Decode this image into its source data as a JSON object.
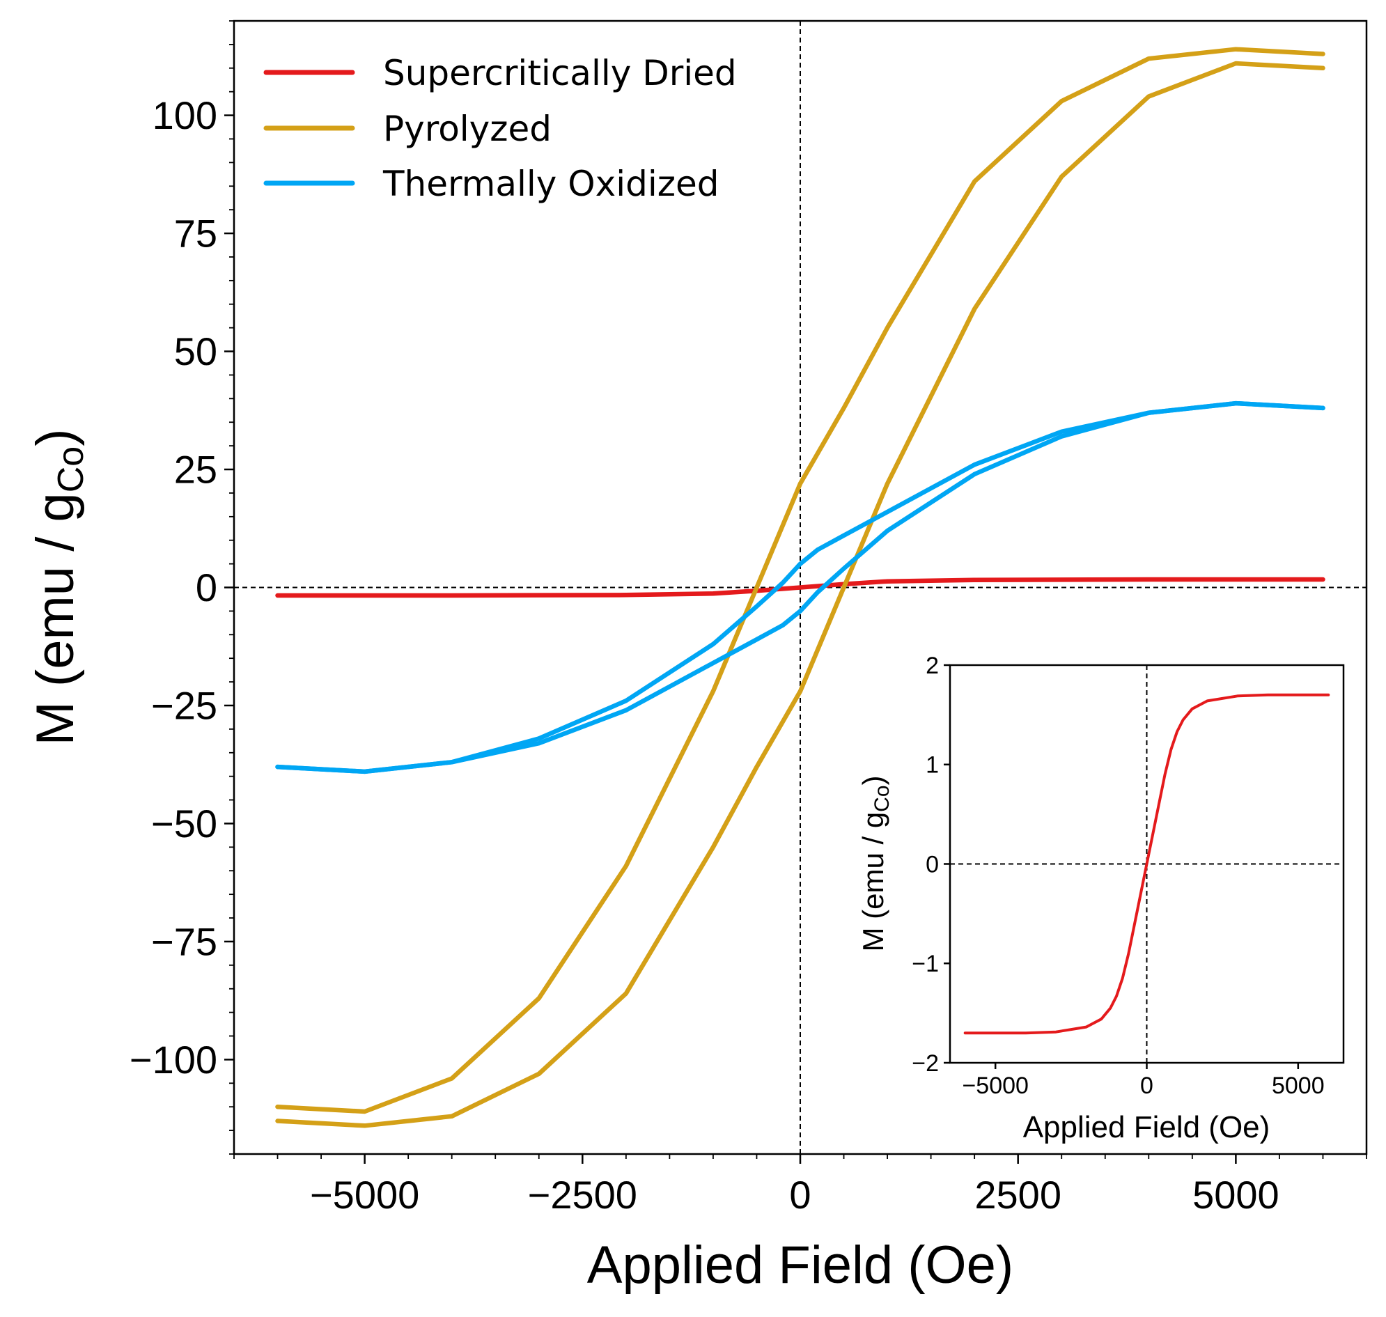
{
  "chart_data": [
    {
      "type": "line",
      "xlabel": "Applied Field (Oe)",
      "ylabel_main": "M (emu / g",
      "ylabel_sub": "Co",
      "ylabel_end": ")",
      "xlim": [
        -6500,
        6500
      ],
      "ylim": [
        -120,
        120
      ],
      "x_ticks": [
        -5000,
        -2500,
        0,
        2500,
        5000
      ],
      "x_tick_labels": [
        "−5000",
        "−2500",
        "0",
        "2500",
        "5000"
      ],
      "y_ticks": [
        100,
        75,
        50,
        25,
        0,
        -25,
        -50,
        -75,
        -100
      ],
      "y_tick_labels": [
        "100",
        "75",
        "50",
        "25",
        "0",
        "−25",
        "−50",
        "−75",
        "−100"
      ],
      "x_minor_step": 500,
      "y_minor_step": 5,
      "zero_lines": true,
      "legend_position": "upper-left",
      "series": [
        {
          "name": "Supercritically Dried",
          "color": "#e41a1c",
          "branches": [
            {
              "x": [
                -6000,
                -4000,
                -2000,
                -1000,
                -500,
                0,
                500,
                1000,
                2000,
                4000,
                6000
              ],
              "y": [
                -1.7,
                -1.7,
                -1.6,
                -1.3,
                -0.7,
                0.0,
                0.7,
                1.3,
                1.6,
                1.7,
                1.7
              ]
            }
          ]
        },
        {
          "name": "Pyrolyzed",
          "color": "#d4a017",
          "branches": [
            {
              "x": [
                6000,
                5000,
                4000,
                3000,
                2000,
                1000,
                500,
                0,
                -500,
                -1000,
                -2000,
                -3000,
                -4000,
                -5000,
                -6000
              ],
              "y": [
                113,
                114,
                112,
                103,
                86,
                55,
                38,
                22,
                0,
                -22,
                -59,
                -87,
                -104,
                -111,
                -110
              ]
            },
            {
              "x": [
                -6000,
                -5000,
                -4000,
                -3000,
                -2000,
                -1000,
                -500,
                0,
                500,
                1000,
                2000,
                3000,
                4000,
                5000,
                6000
              ],
              "y": [
                -113,
                -114,
                -112,
                -103,
                -86,
                -55,
                -38,
                -22,
                0,
                22,
                59,
                87,
                104,
                111,
                110
              ]
            }
          ]
        },
        {
          "name": "Thermally Oxidized",
          "color": "#00a6f4",
          "branches": [
            {
              "x": [
                6000,
                5000,
                4000,
                3000,
                2000,
                1000,
                500,
                200,
                0,
                -200,
                -500,
                -1000,
                -2000,
                -3000,
                -4000,
                -5000,
                -6000
              ],
              "y": [
                38,
                39,
                37,
                33,
                26,
                16,
                11,
                8,
                5,
                1,
                -4,
                -12,
                -24,
                -32,
                -37,
                -39,
                -38
              ]
            },
            {
              "x": [
                -6000,
                -5000,
                -4000,
                -3000,
                -2000,
                -1000,
                -500,
                -200,
                0,
                200,
                500,
                1000,
                2000,
                3000,
                4000,
                5000,
                6000
              ],
              "y": [
                -38,
                -39,
                -37,
                -33,
                -26,
                -16,
                -11,
                -8,
                -5,
                -1,
                4,
                12,
                24,
                32,
                37,
                39,
                38
              ]
            }
          ]
        }
      ]
    },
    {
      "type": "line",
      "xlabel": "Applied Field (Oe)",
      "ylabel_main": "M (emu / g",
      "ylabel_sub": "Co",
      "ylabel_end": ")",
      "xlim": [
        -6500,
        6500
      ],
      "ylim": [
        -2,
        2
      ],
      "x_ticks": [
        -5000,
        0,
        5000
      ],
      "x_tick_labels": [
        "−5000",
        "0",
        "5000"
      ],
      "y_ticks": [
        2,
        1,
        0,
        -1,
        -2
      ],
      "y_tick_labels": [
        "2",
        "1",
        "0",
        "−1",
        "−2"
      ],
      "zero_lines": true,
      "series": [
        {
          "color": "#e41a1c",
          "branches": [
            {
              "x": [
                -6000,
                -5000,
                -4000,
                -3000,
                -2000,
                -1500,
                -1200,
                -1000,
                -800,
                -600,
                -400,
                -200,
                0,
                200,
                400,
                600,
                800,
                1000,
                1200,
                1500,
                2000,
                3000,
                4000,
                5000,
                6000
              ],
              "y": [
                -1.7,
                -1.7,
                -1.7,
                -1.69,
                -1.64,
                -1.56,
                -1.45,
                -1.33,
                -1.15,
                -0.9,
                -0.6,
                -0.3,
                0.0,
                0.3,
                0.6,
                0.9,
                1.15,
                1.33,
                1.45,
                1.56,
                1.64,
                1.69,
                1.7,
                1.7,
                1.7
              ]
            }
          ]
        }
      ]
    }
  ],
  "legend": [
    {
      "label": "Supercritically Dried",
      "color": "#e41a1c"
    },
    {
      "label": "Pyrolyzed",
      "color": "#d4a017"
    },
    {
      "label": "Thermally Oxidized",
      "color": "#00a6f4"
    }
  ]
}
